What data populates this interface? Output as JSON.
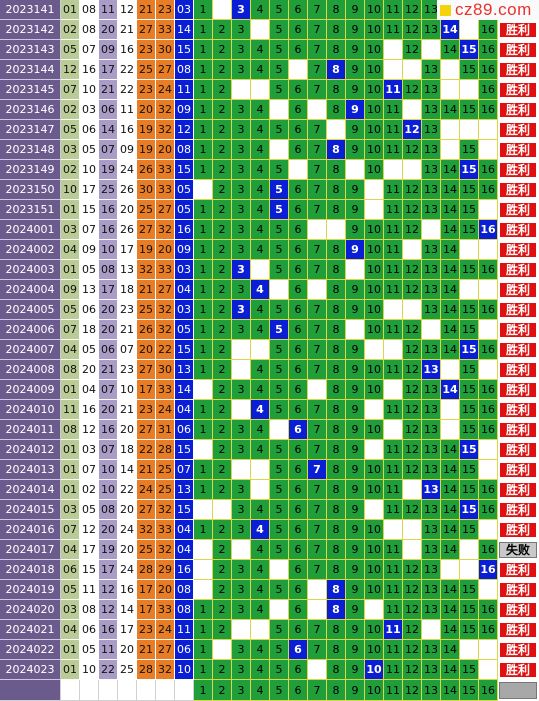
{
  "logo": {
    "text": "cz89.com"
  },
  "rows": [
    {
      "period": "2023141",
      "reds": [
        "01",
        "08",
        "11",
        "12",
        "21",
        "23"
      ],
      "blue": "03",
      "hit": 3,
      "result": "胜利"
    },
    {
      "period": "2023142",
      "reds": [
        "02",
        "08",
        "20",
        "21",
        "27",
        "33"
      ],
      "blue": "14",
      "hit": 14,
      "result": "胜利"
    },
    {
      "period": "2023143",
      "reds": [
        "05",
        "07",
        "09",
        "16",
        "23",
        "30"
      ],
      "blue": "15",
      "hit": 15,
      "result": "胜利"
    },
    {
      "period": "2023144",
      "reds": [
        "12",
        "16",
        "17",
        "22",
        "25",
        "27"
      ],
      "blue": "08",
      "hit": 8,
      "result": "胜利"
    },
    {
      "period": "2023145",
      "reds": [
        "07",
        "10",
        "21",
        "22",
        "23",
        "24"
      ],
      "blue": "11",
      "hit": 11,
      "result": "胜利"
    },
    {
      "period": "2023146",
      "reds": [
        "02",
        "03",
        "06",
        "11",
        "20",
        "32"
      ],
      "blue": "09",
      "hit": 9,
      "result": "胜利"
    },
    {
      "period": "2023147",
      "reds": [
        "05",
        "06",
        "14",
        "16",
        "19",
        "32"
      ],
      "blue": "12",
      "hit": 12,
      "result": "胜利"
    },
    {
      "period": "2023148",
      "reds": [
        "03",
        "05",
        "07",
        "09",
        "19",
        "20"
      ],
      "blue": "08",
      "hit": 8,
      "result": "胜利"
    },
    {
      "period": "2023149",
      "reds": [
        "02",
        "10",
        "19",
        "24",
        "26",
        "33"
      ],
      "blue": "15",
      "hit": 15,
      "result": "胜利"
    },
    {
      "period": "2023150",
      "reds": [
        "10",
        "17",
        "25",
        "26",
        "30",
        "33"
      ],
      "blue": "05",
      "hit": 5,
      "result": "胜利"
    },
    {
      "period": "2023151",
      "reds": [
        "01",
        "15",
        "16",
        "20",
        "25",
        "27"
      ],
      "blue": "05",
      "hit": 5,
      "result": "胜利"
    },
    {
      "period": "2024001",
      "reds": [
        "03",
        "07",
        "16",
        "26",
        "27",
        "32"
      ],
      "blue": "16",
      "hit": 16,
      "result": "胜利"
    },
    {
      "period": "2024002",
      "reds": [
        "04",
        "09",
        "10",
        "17",
        "19",
        "20"
      ],
      "blue": "09",
      "hit": 9,
      "result": "胜利"
    },
    {
      "period": "2024003",
      "reds": [
        "01",
        "05",
        "08",
        "13",
        "32",
        "33"
      ],
      "blue": "03",
      "hit": 3,
      "result": "胜利"
    },
    {
      "period": "2024004",
      "reds": [
        "09",
        "13",
        "17",
        "18",
        "21",
        "27"
      ],
      "blue": "04",
      "hit": 4,
      "result": "胜利"
    },
    {
      "period": "2024005",
      "reds": [
        "05",
        "06",
        "20",
        "23",
        "25",
        "32"
      ],
      "blue": "03",
      "hit": 3,
      "result": "胜利"
    },
    {
      "period": "2024006",
      "reds": [
        "07",
        "18",
        "20",
        "21",
        "26",
        "32"
      ],
      "blue": "05",
      "hit": 5,
      "result": "胜利"
    },
    {
      "period": "2024007",
      "reds": [
        "04",
        "05",
        "06",
        "07",
        "20",
        "22"
      ],
      "blue": "15",
      "hit": 15,
      "result": "胜利"
    },
    {
      "period": "2024008",
      "reds": [
        "08",
        "20",
        "21",
        "23",
        "27",
        "30"
      ],
      "blue": "13",
      "hit": 13,
      "result": "胜利"
    },
    {
      "period": "2024009",
      "reds": [
        "01",
        "04",
        "07",
        "10",
        "17",
        "33"
      ],
      "blue": "14",
      "hit": 14,
      "result": "胜利"
    },
    {
      "period": "2024010",
      "reds": [
        "11",
        "16",
        "20",
        "21",
        "23",
        "24"
      ],
      "blue": "04",
      "hit": 4,
      "result": "胜利"
    },
    {
      "period": "2024011",
      "reds": [
        "08",
        "12",
        "16",
        "20",
        "27",
        "31"
      ],
      "blue": "06",
      "hit": 6,
      "result": "胜利"
    },
    {
      "period": "2024012",
      "reds": [
        "01",
        "03",
        "07",
        "18",
        "22",
        "28"
      ],
      "blue": "15",
      "hit": 15,
      "result": "胜利"
    },
    {
      "period": "2024013",
      "reds": [
        "01",
        "07",
        "10",
        "14",
        "21",
        "25"
      ],
      "blue": "07",
      "hit": 7,
      "result": "胜利"
    },
    {
      "period": "2024014",
      "reds": [
        "01",
        "02",
        "10",
        "22",
        "24",
        "25"
      ],
      "blue": "13",
      "hit": 13,
      "result": "胜利"
    },
    {
      "period": "2024015",
      "reds": [
        "03",
        "05",
        "08",
        "20",
        "27",
        "32"
      ],
      "blue": "15",
      "hit": 15,
      "result": "胜利"
    },
    {
      "period": "2024016",
      "reds": [
        "07",
        "12",
        "20",
        "24",
        "32",
        "33"
      ],
      "blue": "04",
      "hit": 4,
      "result": "胜利"
    },
    {
      "period": "2024017",
      "reds": [
        "04",
        "17",
        "19",
        "20",
        "25",
        "32"
      ],
      "blue": "04",
      "hit": 0,
      "result": "失败"
    },
    {
      "period": "2024018",
      "reds": [
        "06",
        "15",
        "17",
        "24",
        "28",
        "29"
      ],
      "blue": "16",
      "hit": 16,
      "result": "胜利"
    },
    {
      "period": "2024019",
      "reds": [
        "05",
        "11",
        "12",
        "16",
        "17",
        "20"
      ],
      "blue": "08",
      "hit": 8,
      "result": "胜利"
    },
    {
      "period": "2024020",
      "reds": [
        "03",
        "08",
        "12",
        "14",
        "17",
        "33"
      ],
      "blue": "08",
      "hit": 8,
      "result": "胜利"
    },
    {
      "period": "2024021",
      "reds": [
        "04",
        "06",
        "16",
        "17",
        "23",
        "24"
      ],
      "blue": "11",
      "hit": 11,
      "result": "胜利"
    },
    {
      "period": "2024022",
      "reds": [
        "01",
        "05",
        "11",
        "20",
        "21",
        "27"
      ],
      "blue": "06",
      "hit": 6,
      "result": "胜利"
    },
    {
      "period": "2024023",
      "reds": [
        "01",
        "10",
        "22",
        "25",
        "28",
        "32"
      ],
      "blue": "10",
      "hit": 10,
      "result": "胜利"
    }
  ],
  "misses": [
    [
      2,
      3,
      16
    ],
    [
      4,
      15
    ],
    [
      11,
      13
    ],
    [
      6,
      11,
      12,
      14
    ],
    [
      3,
      4,
      14,
      15
    ],
    [
      5,
      7,
      12
    ],
    [
      8,
      14,
      15,
      16
    ],
    [
      5,
      14,
      16
    ],
    [
      6,
      9,
      11,
      12
    ],
    [
      1,
      10
    ],
    [
      10,
      16
    ],
    [
      7,
      8,
      13
    ],
    [
      12,
      15,
      16
    ],
    [
      4,
      9
    ],
    [
      5,
      7,
      15,
      16
    ],
    [
      3,
      11,
      12
    ],
    [
      9,
      13,
      16
    ],
    [
      3,
      4,
      10,
      11
    ],
    [
      3,
      14,
      16
    ],
    [
      1,
      7,
      11
    ],
    [
      3,
      4,
      10,
      14
    ],
    [
      5,
      11,
      14
    ],
    [
      1,
      10,
      16
    ],
    [
      3,
      4,
      16
    ],
    [
      4,
      12
    ],
    [
      1,
      2,
      10
    ],
    [
      11,
      12,
      16
    ],
    [
      1,
      3,
      12,
      15
    ],
    [
      1,
      5,
      14,
      15
    ],
    [
      1,
      7,
      16
    ],
    [
      5,
      7,
      10
    ],
    [
      3,
      4,
      13
    ],
    [
      2,
      15,
      16
    ],
    [
      7,
      16
    ]
  ],
  "footer": {
    "numbers": [
      "1",
      "2",
      "3",
      "4",
      "5",
      "6",
      "7",
      "8",
      "9",
      "10",
      "11",
      "12",
      "13",
      "14",
      "15",
      "16"
    ]
  },
  "palette": {
    "period_bg": "#6b5a8c",
    "zone_colors": [
      "#b9cc95",
      "#ffffff",
      "#a99cc6",
      "#ffffff",
      "#e87d25",
      "#e87d25"
    ],
    "blue_ball_bg": "#0a1ed6",
    "grid_green": "#1f9e3a",
    "hit_blue": "#0a1ed6",
    "win_red": "#e01010"
  }
}
